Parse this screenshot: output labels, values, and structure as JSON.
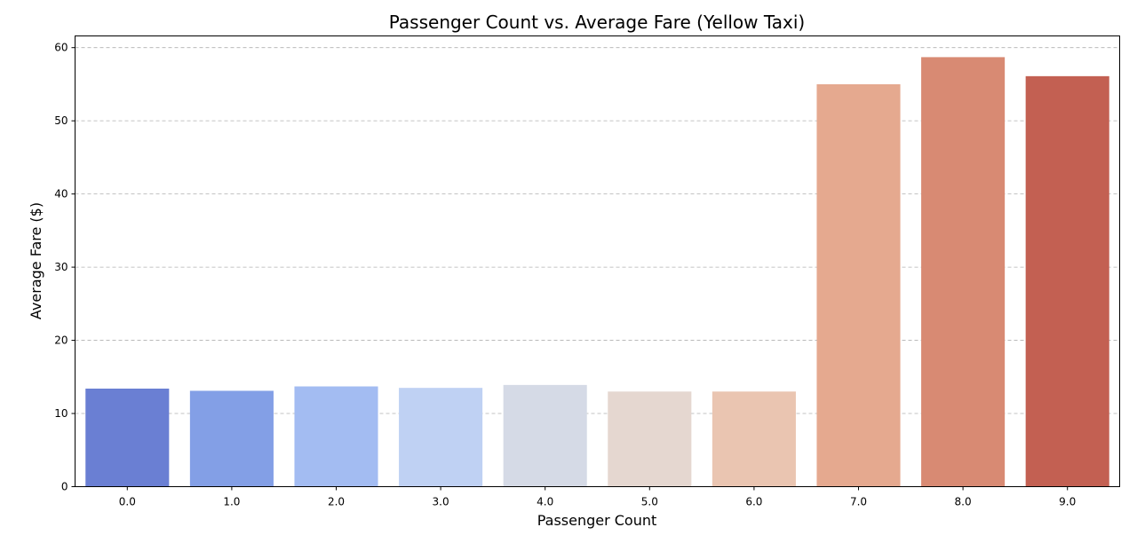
{
  "chart_data": {
    "type": "bar",
    "title": "Passenger Count vs. Average Fare (Yellow Taxi)",
    "xlabel": "Passenger Count",
    "ylabel": "Average Fare ($)",
    "categories": [
      "0.0",
      "1.0",
      "2.0",
      "3.0",
      "4.0",
      "5.0",
      "6.0",
      "7.0",
      "8.0",
      "9.0"
    ],
    "values": [
      13.4,
      13.1,
      13.7,
      13.5,
      13.9,
      13.0,
      13.0,
      55.0,
      58.7,
      56.1
    ],
    "colors": [
      "#6a7fd3",
      "#839fe6",
      "#a3bcf2",
      "#bfd1f3",
      "#d5dae6",
      "#e5d7d0",
      "#eac5b1",
      "#e5a98f",
      "#d88a73",
      "#c36052"
    ],
    "ylim": [
      0,
      61.6
    ],
    "yticks": [
      0,
      10,
      20,
      30,
      40,
      50,
      60
    ],
    "ytick_labels": [
      "0",
      "10",
      "20",
      "30",
      "40",
      "50",
      "60"
    ],
    "grid": "y-dashed",
    "legend": "none"
  }
}
